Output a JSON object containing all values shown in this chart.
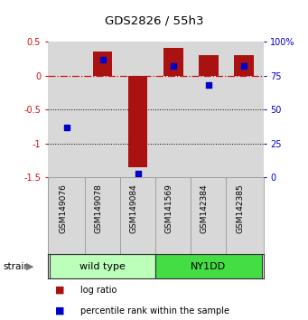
{
  "title": "GDS2826 / 55h3",
  "samples": [
    "GSM149076",
    "GSM149078",
    "GSM149084",
    "GSM141569",
    "GSM142384",
    "GSM142385"
  ],
  "log_ratios": [
    0.0,
    0.35,
    -1.35,
    0.41,
    0.3,
    0.3
  ],
  "percentile_ranks": [
    37,
    87,
    3,
    82,
    68,
    82
  ],
  "ylim_left": [
    -1.5,
    0.5
  ],
  "ylim_right": [
    0,
    100
  ],
  "yticks_left": [
    -1.5,
    -1.0,
    -0.5,
    0.0,
    0.5
  ],
  "yticks_right": [
    0,
    25,
    50,
    75,
    100
  ],
  "ytick_labels_left": [
    "-1.5",
    "-1",
    "-0.5",
    "0",
    "0.5"
  ],
  "ytick_labels_right": [
    "0",
    "25",
    "50",
    "75",
    "100%"
  ],
  "bar_color": "#aa1111",
  "dot_color": "#0000cc",
  "groups": [
    {
      "label": "wild type",
      "indices": [
        0,
        1,
        2
      ],
      "color": "#bbffbb"
    },
    {
      "label": "NY1DD",
      "indices": [
        3,
        4,
        5
      ],
      "color": "#44dd44"
    }
  ],
  "strain_label": "strain",
  "legend_items": [
    {
      "label": "log ratio",
      "color": "#aa1111"
    },
    {
      "label": "percentile rank within the sample",
      "color": "#0000cc"
    }
  ],
  "hline_zero_color": "#cc1111",
  "hline_dotted_color": "#000000",
  "plot_bg_color": "#d8d8d8"
}
